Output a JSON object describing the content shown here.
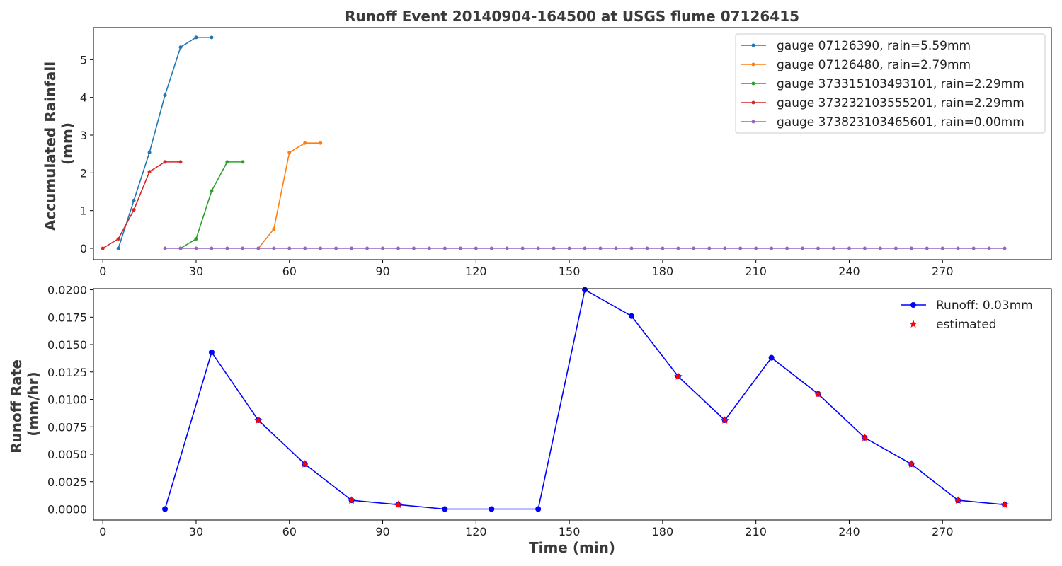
{
  "chart_data": [
    {
      "type": "line",
      "title": "Runoff Event 20140904-164500 at USGS flume 07126415",
      "xlabel": "",
      "ylabel": "Accumulated Rainfall\n(mm)",
      "xlim": [
        -3,
        305
      ],
      "ylim": [
        -0.3,
        5.85
      ],
      "xticks": [
        0,
        30,
        60,
        90,
        120,
        150,
        180,
        210,
        240,
        270
      ],
      "yticks": [
        0,
        1,
        2,
        3,
        4,
        5
      ],
      "grid": false,
      "legend": "top-right",
      "series": [
        {
          "name": "gauge 07126390, rain=5.59mm",
          "color": "#1f77b4",
          "x": [
            5,
            10,
            15,
            20,
            25,
            30,
            35
          ],
          "y": [
            0.0,
            1.27,
            2.54,
            4.06,
            5.33,
            5.59,
            5.59
          ]
        },
        {
          "name": "gauge 07126480, rain=2.79mm",
          "color": "#ff7f0e",
          "x": [
            50,
            55,
            60,
            65,
            70
          ],
          "y": [
            0.0,
            0.51,
            2.54,
            2.79,
            2.79
          ]
        },
        {
          "name": "gauge 373315103493101, rain=2.29mm",
          "color": "#2ca02c",
          "x": [
            25,
            30,
            35,
            40,
            45
          ],
          "y": [
            0.0,
            0.25,
            1.52,
            2.29,
            2.29
          ]
        },
        {
          "name": "gauge 373232103555201, rain=2.29mm",
          "color": "#d62728",
          "x": [
            0,
            5,
            10,
            15,
            20,
            25
          ],
          "y": [
            0.0,
            0.25,
            1.02,
            2.03,
            2.29,
            2.29
          ]
        },
        {
          "name": "gauge 373823103465601, rain=0.00mm",
          "color": "#9467bd",
          "x": [
            20,
            25,
            30,
            35,
            40,
            45,
            50,
            55,
            60,
            65,
            70,
            75,
            80,
            85,
            90,
            95,
            100,
            105,
            110,
            115,
            120,
            125,
            130,
            135,
            140,
            145,
            150,
            155,
            160,
            165,
            170,
            175,
            180,
            185,
            190,
            195,
            200,
            205,
            210,
            215,
            220,
            225,
            230,
            235,
            240,
            245,
            250,
            255,
            260,
            265,
            270,
            275,
            280,
            285,
            290
          ],
          "y": [
            0,
            0,
            0,
            0,
            0,
            0,
            0,
            0,
            0,
            0,
            0,
            0,
            0,
            0,
            0,
            0,
            0,
            0,
            0,
            0,
            0,
            0,
            0,
            0,
            0,
            0,
            0,
            0,
            0,
            0,
            0,
            0,
            0,
            0,
            0,
            0,
            0,
            0,
            0,
            0,
            0,
            0,
            0,
            0,
            0,
            0,
            0,
            0,
            0,
            0,
            0,
            0,
            0,
            0,
            0
          ]
        }
      ]
    },
    {
      "type": "line",
      "title": "",
      "xlabel": "Time (min)",
      "ylabel": "Runoff Rate\n(mm/hr)",
      "xlim": [
        -3,
        305
      ],
      "ylim": [
        -0.001,
        0.0201
      ],
      "xticks": [
        0,
        30,
        60,
        90,
        120,
        150,
        180,
        210,
        240,
        270
      ],
      "yticks": [
        "0.0000",
        "0.0025",
        "0.0050",
        "0.0075",
        "0.0100",
        "0.0125",
        "0.0150",
        "0.0175",
        "0.0200"
      ],
      "grid": false,
      "legend": "top-right",
      "series": [
        {
          "name": "Runoff: 0.03mm",
          "color": "#0000ff",
          "x": [
            20,
            35,
            50,
            65,
            80,
            95,
            110,
            125,
            140,
            155,
            170,
            185,
            200,
            215,
            230,
            245,
            260,
            275,
            290
          ],
          "y": [
            0.0,
            0.0143,
            0.0081,
            0.0041,
            0.0008,
            0.0004,
            0.0,
            0.0,
            0.0,
            0.02,
            0.0176,
            0.0121,
            0.0081,
            0.0138,
            0.0105,
            0.0065,
            0.0041,
            0.0008,
            0.0004
          ]
        },
        {
          "name": "estimated",
          "color": "#ff0000",
          "marker": "star",
          "x": [
            50,
            65,
            80,
            95,
            185,
            200,
            230,
            245,
            260,
            275,
            290
          ],
          "y": [
            0.0081,
            0.0041,
            0.0008,
            0.0004,
            0.0121,
            0.0081,
            0.0105,
            0.0065,
            0.0041,
            0.0008,
            0.0004
          ]
        }
      ]
    }
  ]
}
